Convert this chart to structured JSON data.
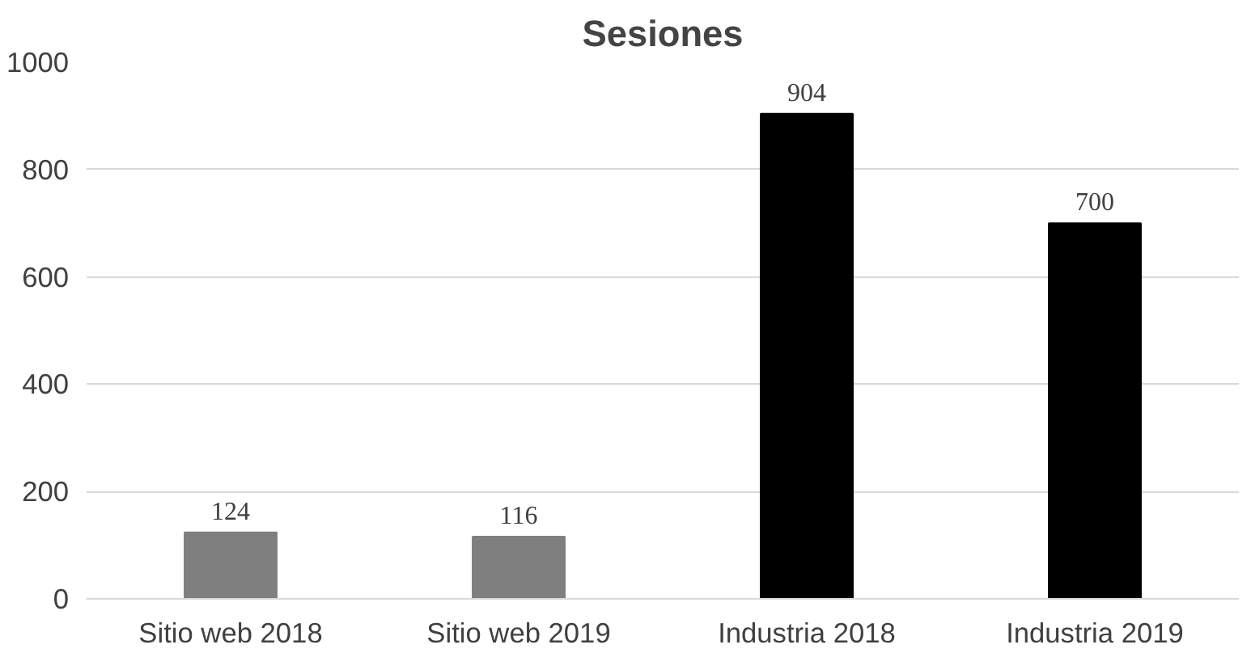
{
  "chart_data": {
    "type": "bar",
    "title": "Sesiones",
    "categories": [
      "Sitio web 2018",
      "Sitio web 2019",
      "Industria 2018",
      "Industria 2019"
    ],
    "values": [
      124,
      116,
      904,
      700
    ],
    "colors": [
      "#7f7f7f",
      "#7f7f7f",
      "#000000",
      "#000000"
    ],
    "ylim": [
      0,
      1000
    ],
    "yticks": [
      0,
      200,
      400,
      600,
      800,
      1000
    ],
    "grid": "y",
    "data_labels": true
  }
}
